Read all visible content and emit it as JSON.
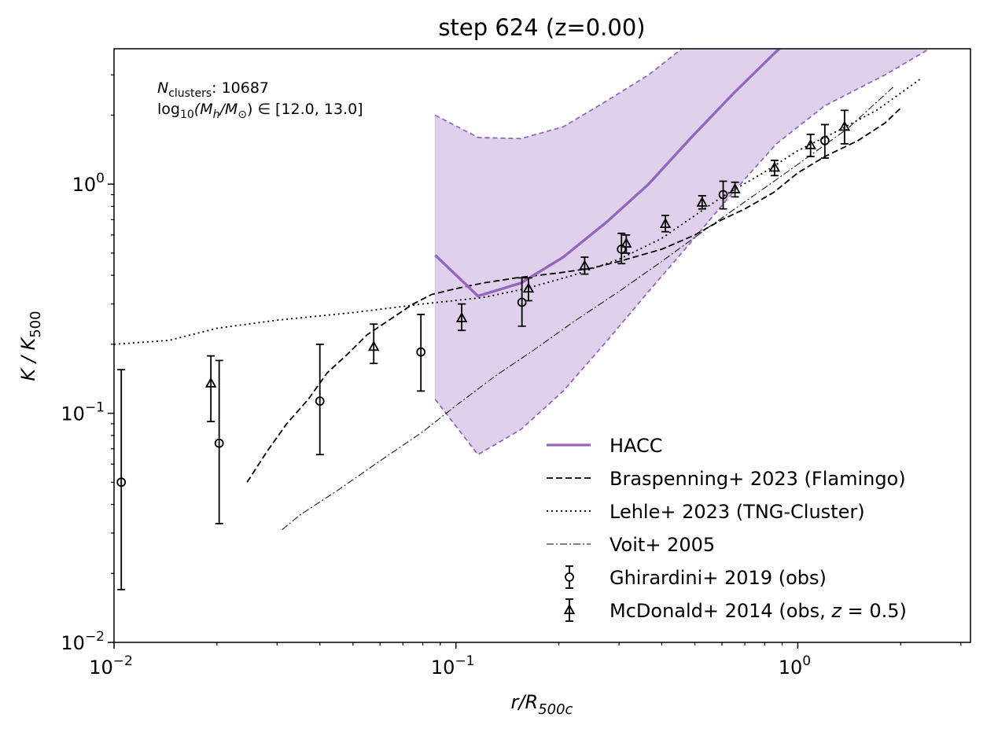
{
  "chart_data": {
    "type": "line",
    "title": "step 624 (z=0.00)",
    "xlabel": "r/R",
    "xlabel_sub": "500c",
    "ylabel": "K / K",
    "ylabel_sub": "500",
    "xscale": "log",
    "yscale": "log",
    "xlim": [
      0.01,
      3.2
    ],
    "ylim": [
      0.01,
      3.9
    ],
    "xticks": [
      {
        "value": 0.01,
        "base": "10",
        "exp": "−2"
      },
      {
        "value": 0.1,
        "base": "10",
        "exp": "−1"
      },
      {
        "value": 1,
        "base": "10",
        "exp": "0"
      }
    ],
    "yticks": [
      {
        "value": 0.01,
        "base": "10",
        "exp": "−2"
      },
      {
        "value": 0.1,
        "base": "10",
        "exp": "−1"
      },
      {
        "value": 1,
        "base": "10",
        "exp": "0"
      }
    ],
    "annotation": {
      "line1_symbol": "N",
      "line1_sub": "clusters",
      "line1_value": ": 10687",
      "line2_prefix": "log",
      "line2_sub": "10",
      "line2_body": "(M",
      "line2_sub2": "h",
      "line2_mid": "/M",
      "line2_sub3": "⊙",
      "line2_suffix": ") ∈ [12.0, 13.0]"
    },
    "colors": {
      "hacc": "#9467bd",
      "band_fill": "#9467bd",
      "obs": "#000000"
    },
    "hacc": {
      "name": "HACC",
      "x": [
        0.087,
        0.116,
        0.155,
        0.206,
        0.275,
        0.366,
        0.488,
        0.65,
        0.866,
        1.0
      ],
      "y": [
        0.49,
        0.325,
        0.37,
        0.48,
        0.68,
        1.0,
        1.6,
        2.5,
        3.8,
        4.6
      ],
      "band_upper": {
        "x": [
          0.087,
          0.116,
          0.155,
          0.206,
          0.275,
          0.366,
          0.488,
          0.65,
          0.866,
          1.2,
          1.8,
          2.5
        ],
        "y": [
          2.0,
          1.6,
          1.58,
          1.78,
          2.3,
          3.0,
          4.2,
          5.8,
          7.5,
          9.0,
          11.0,
          13.0
        ]
      },
      "band_lower": {
        "x": [
          0.087,
          0.116,
          0.155,
          0.206,
          0.275,
          0.366,
          0.488,
          0.65,
          0.866,
          1.2,
          1.8,
          2.5
        ],
        "y": [
          0.115,
          0.066,
          0.085,
          0.125,
          0.205,
          0.34,
          0.56,
          0.93,
          1.5,
          2.2,
          3.0,
          4.0
        ]
      }
    },
    "series": [
      {
        "name": "Braspenning+ 2023 (Flamingo)",
        "style": "dashed",
        "x": [
          0.0245,
          0.028,
          0.032,
          0.037,
          0.042,
          0.048,
          0.055,
          0.065,
          0.075,
          0.085,
          0.1,
          0.12,
          0.15,
          0.2,
          0.25,
          0.3,
          0.4,
          0.5,
          0.6,
          0.7,
          0.85,
          1.0,
          1.2,
          1.5,
          1.8,
          2.0
        ],
        "y": [
          0.05,
          0.068,
          0.09,
          0.115,
          0.15,
          0.18,
          0.22,
          0.26,
          0.3,
          0.33,
          0.35,
          0.37,
          0.39,
          0.41,
          0.43,
          0.46,
          0.52,
          0.6,
          0.7,
          0.78,
          0.92,
          1.12,
          1.32,
          1.55,
          1.85,
          2.15
        ]
      },
      {
        "name": "Lehle+ 2023 (TNG-Cluster)",
        "style": "dotted",
        "x": [
          0.01,
          0.0145,
          0.02,
          0.03,
          0.05,
          0.08,
          0.12,
          0.16,
          0.22,
          0.3,
          0.4,
          0.5,
          0.6,
          0.8,
          1.0,
          1.3,
          1.7,
          2.3
        ],
        "y": [
          0.2,
          0.208,
          0.235,
          0.255,
          0.275,
          0.3,
          0.32,
          0.35,
          0.4,
          0.47,
          0.58,
          0.73,
          0.88,
          1.13,
          1.4,
          1.7,
          2.1,
          2.9
        ]
      },
      {
        "name": "Voit+ 2005",
        "style": "dashdot",
        "x": [
          0.031,
          0.035,
          0.045,
          0.06,
          0.08,
          0.1,
          0.13,
          0.17,
          0.22,
          0.3,
          0.4,
          0.55,
          0.75,
          1.0,
          1.4,
          1.9
        ],
        "y": [
          0.031,
          0.036,
          0.046,
          0.062,
          0.083,
          0.108,
          0.145,
          0.19,
          0.25,
          0.34,
          0.46,
          0.65,
          0.9,
          1.22,
          1.75,
          2.65
        ]
      }
    ],
    "ghirardini": {
      "name": "Ghirardini+ 2019 (obs)",
      "marker": "circle",
      "x": [
        0.0105,
        0.0203,
        0.04,
        0.079,
        0.156,
        0.305,
        0.605,
        1.2
      ],
      "y": [
        0.05,
        0.074,
        0.113,
        0.185,
        0.305,
        0.52,
        0.9,
        1.55
      ],
      "ylow": [
        0.017,
        0.033,
        0.066,
        0.125,
        0.24,
        0.45,
        0.78,
        1.3
      ],
      "yhigh": [
        0.155,
        0.17,
        0.2,
        0.27,
        0.39,
        0.61,
        1.03,
        1.82
      ]
    },
    "mcdonald": {
      "name": "McDonald+ 2014 (obs, z = 0.5)",
      "name_prefix": "McDonald+ 2014 (obs, ",
      "name_italic": "z",
      "name_suffix": " = 0.5)",
      "marker": "triangle",
      "x": [
        0.0192,
        0.0575,
        0.104,
        0.163,
        0.238,
        0.315,
        0.41,
        0.525,
        0.655,
        0.855,
        1.09,
        1.37
      ],
      "y": [
        0.135,
        0.195,
        0.26,
        0.35,
        0.44,
        0.55,
        0.67,
        0.83,
        0.95,
        1.18,
        1.48,
        1.78
      ],
      "ylow": [
        0.092,
        0.165,
        0.23,
        0.31,
        0.405,
        0.5,
        0.62,
        0.78,
        0.88,
        1.09,
        1.32,
        1.5
      ],
      "yhigh": [
        0.178,
        0.245,
        0.3,
        0.39,
        0.48,
        0.6,
        0.73,
        0.89,
        1.02,
        1.27,
        1.65,
        2.1
      ]
    },
    "legend": {
      "position": "lower-right",
      "entries": [
        {
          "label": "HACC",
          "style": "solid"
        },
        {
          "label": "Braspenning+ 2023 (Flamingo)",
          "style": "dashed"
        },
        {
          "label": "Lehle+ 2023 (TNG-Cluster)",
          "style": "dotted"
        },
        {
          "label": "Voit+ 2005",
          "style": "dashdot"
        },
        {
          "label": "Ghirardini+ 2019 (obs)",
          "style": "circle"
        },
        {
          "label": "McDonald+ 2014 (obs, z = 0.5)",
          "style": "triangle"
        }
      ]
    }
  }
}
